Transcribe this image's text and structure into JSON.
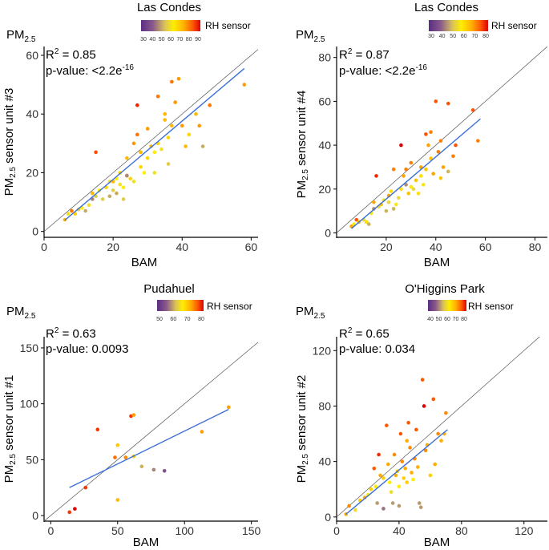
{
  "colors": {
    "regression": "#3a6fd8",
    "identity": "#555555",
    "axis": "#000000",
    "rh_scale": [
      "#5b2d82",
      "#8a5a8c",
      "#b89a6f",
      "#e6d640",
      "#ffee00",
      "#ffc000",
      "#ff8a00",
      "#ff4000",
      "#dd0000"
    ]
  },
  "chart_data": [
    {
      "type": "scatter",
      "id": "p1",
      "title": "Las Condes",
      "pm_label": "PM",
      "pm_sub": "2.5",
      "ylabel_prefix": "PM",
      "ylabel_sub": "2.5",
      "ylabel_suffix": "sensor unit #3",
      "xlabel": "BAM",
      "xlim": [
        0,
        62
      ],
      "ylim": [
        -2,
        63
      ],
      "xticks": [
        0,
        20,
        40,
        60
      ],
      "yticks": [
        0,
        20,
        40,
        60
      ],
      "r2_label": "R",
      "r2_value": "= 0.85",
      "p_label": "p-value: <2.2e",
      "p_exp": "-16",
      "legend_title": "RH sensor",
      "legend_labels": [
        "30",
        "40",
        "50",
        "60",
        "70",
        "80",
        "90"
      ],
      "rh_range": [
        25,
        95
      ],
      "fit": {
        "x": [
          6,
          58
        ],
        "y": [
          3.8,
          55.5
        ]
      },
      "points": [
        {
          "x": 6,
          "y": 4,
          "rh": 70
        },
        {
          "x": 7,
          "y": 6,
          "rh": 55
        },
        {
          "x": 8,
          "y": 7,
          "rh": 80
        },
        {
          "x": 9,
          "y": 6,
          "rh": 65
        },
        {
          "x": 10,
          "y": 7.5,
          "rh": 50
        },
        {
          "x": 11,
          "y": 8,
          "rh": 60
        },
        {
          "x": 12,
          "y": 7,
          "rh": 45
        },
        {
          "x": 13,
          "y": 9,
          "rh": 55
        },
        {
          "x": 14,
          "y": 11,
          "rh": 40
        },
        {
          "x": 14,
          "y": 13,
          "rh": 70
        },
        {
          "x": 15,
          "y": 12,
          "rh": 50
        },
        {
          "x": 16,
          "y": 14,
          "rh": 60
        },
        {
          "x": 15,
          "y": 27,
          "rh": 85
        },
        {
          "x": 17,
          "y": 11,
          "rh": 50
        },
        {
          "x": 18,
          "y": 15,
          "rh": 65
        },
        {
          "x": 19,
          "y": 17,
          "rh": 55
        },
        {
          "x": 19,
          "y": 12,
          "rh": 45
        },
        {
          "x": 20,
          "y": 14,
          "rh": 50
        },
        {
          "x": 20,
          "y": 17,
          "rh": 70
        },
        {
          "x": 21,
          "y": 18,
          "rh": 60
        },
        {
          "x": 21,
          "y": 13,
          "rh": 45
        },
        {
          "x": 22,
          "y": 16,
          "rh": 55
        },
        {
          "x": 23,
          "y": 11,
          "rh": 50
        },
        {
          "x": 23,
          "y": 15,
          "rh": 60
        },
        {
          "x": 24,
          "y": 25,
          "rh": 70
        },
        {
          "x": 24,
          "y": 19,
          "rh": 75
        },
        {
          "x": 25,
          "y": 18,
          "rh": 65
        },
        {
          "x": 26,
          "y": 17,
          "rh": 55
        },
        {
          "x": 26,
          "y": 30,
          "rh": 75
        },
        {
          "x": 27,
          "y": 33,
          "rh": 80
        },
        {
          "x": 27,
          "y": 43,
          "rh": 90
        },
        {
          "x": 28,
          "y": 22,
          "rh": 65
        },
        {
          "x": 28,
          "y": 27,
          "rh": 70
        },
        {
          "x": 29,
          "y": 20,
          "rh": 60
        },
        {
          "x": 30,
          "y": 25,
          "rh": 65
        },
        {
          "x": 30,
          "y": 35,
          "rh": 75
        },
        {
          "x": 31,
          "y": 29,
          "rh": 70
        },
        {
          "x": 32,
          "y": 27,
          "rh": 60
        },
        {
          "x": 32,
          "y": 20,
          "rh": 55
        },
        {
          "x": 33,
          "y": 30,
          "rh": 65
        },
        {
          "x": 33,
          "y": 46,
          "rh": 80
        },
        {
          "x": 34,
          "y": 28,
          "rh": 55
        },
        {
          "x": 35,
          "y": 38,
          "rh": 70
        },
        {
          "x": 35,
          "y": 40,
          "rh": 70
        },
        {
          "x": 36,
          "y": 32,
          "rh": 65
        },
        {
          "x": 36,
          "y": 23,
          "rh": 50
        },
        {
          "x": 37,
          "y": 36,
          "rh": 70
        },
        {
          "x": 37,
          "y": 51,
          "rh": 80
        },
        {
          "x": 38,
          "y": 44,
          "rh": 75
        },
        {
          "x": 39,
          "y": 52,
          "rh": 75
        },
        {
          "x": 40,
          "y": 36,
          "rh": 75
        },
        {
          "x": 41,
          "y": 29,
          "rh": 70
        },
        {
          "x": 42,
          "y": 33,
          "rh": 65
        },
        {
          "x": 44,
          "y": 40,
          "rh": 70
        },
        {
          "x": 45,
          "y": 36,
          "rh": 75
        },
        {
          "x": 46,
          "y": 29,
          "rh": 45
        },
        {
          "x": 48,
          "y": 43,
          "rh": 80
        },
        {
          "x": 24,
          "y": 19,
          "rh": 40
        },
        {
          "x": 22,
          "y": 20,
          "rh": 65
        },
        {
          "x": 58,
          "y": 50,
          "rh": 75
        }
      ]
    },
    {
      "type": "scatter",
      "id": "p2",
      "title": "Las Condes",
      "pm_label": "PM",
      "pm_sub": "2.5",
      "ylabel_prefix": "PM",
      "ylabel_sub": "2.5",
      "ylabel_suffix": "sensor unit #4",
      "xlabel": "BAM",
      "xlim": [
        0,
        85
      ],
      "ylim": [
        -2,
        85
      ],
      "xticks": [
        20,
        40,
        60,
        80
      ],
      "yticks": [
        0,
        20,
        40,
        60,
        80
      ],
      "r2_label": "R",
      "r2_value": "= 0.87",
      "p_label": "p-value: <2.2e",
      "p_exp": "-16",
      "legend_title": "RH sensor",
      "legend_labels": [
        "30",
        "40",
        "50",
        "60",
        "70",
        "80"
      ],
      "rh_range": [
        25,
        90
      ],
      "fit": {
        "x": [
          6,
          58
        ],
        "y": [
          2,
          52
        ]
      },
      "points": [
        {
          "x": 6,
          "y": 3,
          "rh": 70
        },
        {
          "x": 7,
          "y": 4,
          "rh": 55
        },
        {
          "x": 8,
          "y": 6,
          "rh": 80
        },
        {
          "x": 9,
          "y": 5,
          "rh": 65
        },
        {
          "x": 11,
          "y": 6,
          "rh": 50
        },
        {
          "x": 12,
          "y": 5,
          "rh": 60
        },
        {
          "x": 13,
          "y": 4,
          "rh": 45
        },
        {
          "x": 14,
          "y": 9,
          "rh": 55
        },
        {
          "x": 15,
          "y": 11,
          "rh": 40
        },
        {
          "x": 15,
          "y": 14,
          "rh": 70
        },
        {
          "x": 16,
          "y": 26,
          "rh": 85
        },
        {
          "x": 17,
          "y": 12,
          "rh": 50
        },
        {
          "x": 18,
          "y": 13,
          "rh": 65
        },
        {
          "x": 19,
          "y": 15,
          "rh": 55
        },
        {
          "x": 20,
          "y": 10,
          "rh": 45
        },
        {
          "x": 21,
          "y": 14,
          "rh": 50
        },
        {
          "x": 21,
          "y": 17,
          "rh": 70
        },
        {
          "x": 22,
          "y": 19,
          "rh": 60
        },
        {
          "x": 23,
          "y": 11,
          "rh": 45
        },
        {
          "x": 23,
          "y": 29,
          "rh": 75
        },
        {
          "x": 24,
          "y": 13,
          "rh": 55
        },
        {
          "x": 25,
          "y": 16,
          "rh": 50
        },
        {
          "x": 26,
          "y": 20,
          "rh": 60
        },
        {
          "x": 26,
          "y": 40,
          "rh": 90
        },
        {
          "x": 27,
          "y": 26,
          "rh": 70
        },
        {
          "x": 28,
          "y": 29,
          "rh": 75
        },
        {
          "x": 29,
          "y": 18,
          "rh": 65
        },
        {
          "x": 30,
          "y": 21,
          "rh": 55
        },
        {
          "x": 30,
          "y": 32,
          "rh": 75
        },
        {
          "x": 31,
          "y": 20,
          "rh": 50
        },
        {
          "x": 32,
          "y": 24,
          "rh": 65
        },
        {
          "x": 33,
          "y": 18,
          "rh": 60
        },
        {
          "x": 34,
          "y": 26,
          "rh": 60
        },
        {
          "x": 34,
          "y": 30,
          "rh": 70
        },
        {
          "x": 35,
          "y": 22,
          "rh": 55
        },
        {
          "x": 36,
          "y": 29,
          "rh": 65
        },
        {
          "x": 36,
          "y": 45,
          "rh": 80
        },
        {
          "x": 37,
          "y": 40,
          "rh": 70
        },
        {
          "x": 38,
          "y": 34,
          "rh": 65
        },
        {
          "x": 38,
          "y": 46,
          "rh": 75
        },
        {
          "x": 39,
          "y": 27,
          "rh": 70
        },
        {
          "x": 40,
          "y": 60,
          "rh": 80
        },
        {
          "x": 41,
          "y": 37,
          "rh": 75
        },
        {
          "x": 42,
          "y": 42,
          "rh": 75
        },
        {
          "x": 43,
          "y": 30,
          "rh": 70
        },
        {
          "x": 45,
          "y": 59,
          "rh": 80
        },
        {
          "x": 45,
          "y": 28,
          "rh": 45
        },
        {
          "x": 47,
          "y": 35,
          "rh": 75
        },
        {
          "x": 48,
          "y": 40,
          "rh": 80
        },
        {
          "x": 55,
          "y": 56,
          "rh": 80
        },
        {
          "x": 57,
          "y": 42,
          "rh": 75
        },
        {
          "x": 42,
          "y": 25,
          "rh": 65
        },
        {
          "x": 28,
          "y": 22,
          "rh": 40
        }
      ]
    },
    {
      "type": "scatter",
      "id": "p3",
      "title": "Pudahuel",
      "pm_label": "PM",
      "pm_sub": "2.5",
      "ylabel_prefix": "PM",
      "ylabel_sub": "2.5",
      "ylabel_suffix": "sensor unit #1",
      "xlabel": "BAM",
      "xlim": [
        -5,
        155
      ],
      "ylim": [
        -5,
        160
      ],
      "xticks": [
        0,
        50,
        100,
        150
      ],
      "yticks": [
        0,
        50,
        100,
        150
      ],
      "r2_label": "R",
      "r2_value": "= 0.63",
      "p_label": "p-value: 0.0093",
      "p_exp": "",
      "legend_title": "RH sensor",
      "legend_labels": [
        "50",
        "60",
        "70",
        "80"
      ],
      "rh_range": [
        40,
        90
      ],
      "fit": {
        "x": [
          14,
          133
        ],
        "y": [
          25,
          95
        ]
      },
      "points": [
        {
          "x": 14,
          "y": 3,
          "rh": 85
        },
        {
          "x": 18,
          "y": 6,
          "rh": 90
        },
        {
          "x": 26,
          "y": 25,
          "rh": 85
        },
        {
          "x": 35,
          "y": 77,
          "rh": 85
        },
        {
          "x": 48,
          "y": 52,
          "rh": 80
        },
        {
          "x": 50,
          "y": 63,
          "rh": 70
        },
        {
          "x": 50,
          "y": 14,
          "rh": 72
        },
        {
          "x": 56,
          "y": 52,
          "rh": 78
        },
        {
          "x": 60,
          "y": 89,
          "rh": 85
        },
        {
          "x": 62,
          "y": 90,
          "rh": 75
        },
        {
          "x": 62,
          "y": 53,
          "rh": 70
        },
        {
          "x": 68,
          "y": 44,
          "rh": 55
        },
        {
          "x": 77,
          "y": 41,
          "rh": 50
        },
        {
          "x": 85,
          "y": 40,
          "rh": 45
        },
        {
          "x": 113,
          "y": 75,
          "rh": 75
        },
        {
          "x": 133,
          "y": 97,
          "rh": 75
        }
      ]
    },
    {
      "type": "scatter",
      "id": "p4",
      "title": "O'Higgins Park",
      "pm_label": "PM",
      "pm_sub": "2.5",
      "ylabel_prefix": "PM",
      "ylabel_sub": "2.5",
      "ylabel_suffix": "sensor unit #2",
      "xlabel": "BAM",
      "xlim": [
        0,
        135
      ],
      "ylim": [
        -3,
        130
      ],
      "xticks": [
        0,
        40,
        80,
        120
      ],
      "yticks": [
        0,
        40,
        80,
        120
      ],
      "r2_label": "R",
      "r2_value": "= 0.65",
      "p_label": "p-value: 0.034",
      "p_exp": "",
      "legend_title": "RH sensor",
      "legend_labels": [
        "40",
        "50",
        "60",
        "70",
        "80"
      ],
      "rh_range": [
        30,
        90
      ],
      "fit": {
        "x": [
          6,
          71
        ],
        "y": [
          2,
          63
        ]
      },
      "points": [
        {
          "x": 6,
          "y": 2,
          "rh": 70
        },
        {
          "x": 8,
          "y": 8,
          "rh": 75
        },
        {
          "x": 12,
          "y": 5,
          "rh": 55
        },
        {
          "x": 15,
          "y": 12,
          "rh": 65
        },
        {
          "x": 18,
          "y": 14,
          "rh": 70
        },
        {
          "x": 20,
          "y": 16,
          "rh": 60
        },
        {
          "x": 22,
          "y": 20,
          "rh": 65
        },
        {
          "x": 24,
          "y": 35,
          "rh": 80
        },
        {
          "x": 25,
          "y": 22,
          "rh": 60
        },
        {
          "x": 26,
          "y": 10,
          "rh": 45
        },
        {
          "x": 27,
          "y": 45,
          "rh": 85
        },
        {
          "x": 28,
          "y": 30,
          "rh": 70
        },
        {
          "x": 30,
          "y": 28,
          "rh": 65
        },
        {
          "x": 30,
          "y": 6,
          "rh": 40
        },
        {
          "x": 32,
          "y": 66,
          "rh": 80
        },
        {
          "x": 33,
          "y": 38,
          "rh": 70
        },
        {
          "x": 34,
          "y": 25,
          "rh": 60
        },
        {
          "x": 35,
          "y": 18,
          "rh": 55
        },
        {
          "x": 36,
          "y": 10,
          "rh": 45
        },
        {
          "x": 37,
          "y": 45,
          "rh": 75
        },
        {
          "x": 38,
          "y": 30,
          "rh": 70
        },
        {
          "x": 39,
          "y": 33,
          "rh": 65
        },
        {
          "x": 40,
          "y": 22,
          "rh": 60
        },
        {
          "x": 40,
          "y": 8,
          "rh": 45
        },
        {
          "x": 41,
          "y": 60,
          "rh": 80
        },
        {
          "x": 42,
          "y": 40,
          "rh": 75
        },
        {
          "x": 43,
          "y": 28,
          "rh": 65
        },
        {
          "x": 44,
          "y": 35,
          "rh": 70
        },
        {
          "x": 45,
          "y": 25,
          "rh": 65
        },
        {
          "x": 46,
          "y": 68,
          "rh": 80
        },
        {
          "x": 47,
          "y": 50,
          "rh": 75
        },
        {
          "x": 48,
          "y": 32,
          "rh": 70
        },
        {
          "x": 49,
          "y": 27,
          "rh": 60
        },
        {
          "x": 50,
          "y": 42,
          "rh": 75
        },
        {
          "x": 51,
          "y": 63,
          "rh": 80
        },
        {
          "x": 52,
          "y": 36,
          "rh": 70
        },
        {
          "x": 53,
          "y": 10,
          "rh": 45
        },
        {
          "x": 54,
          "y": 7,
          "rh": 45
        },
        {
          "x": 55,
          "y": 99,
          "rh": 80
        },
        {
          "x": 56,
          "y": 80,
          "rh": 90
        },
        {
          "x": 57,
          "y": 48,
          "rh": 75
        },
        {
          "x": 58,
          "y": 52,
          "rh": 70
        },
        {
          "x": 60,
          "y": 30,
          "rh": 65
        },
        {
          "x": 62,
          "y": 85,
          "rh": 80
        },
        {
          "x": 63,
          "y": 38,
          "rh": 70
        },
        {
          "x": 65,
          "y": 60,
          "rh": 75
        },
        {
          "x": 67,
          "y": 55,
          "rh": 70
        },
        {
          "x": 69,
          "y": 60,
          "rh": 70
        },
        {
          "x": 70,
          "y": 75,
          "rh": 75
        },
        {
          "x": 45,
          "y": 55,
          "rh": 70
        }
      ]
    }
  ]
}
